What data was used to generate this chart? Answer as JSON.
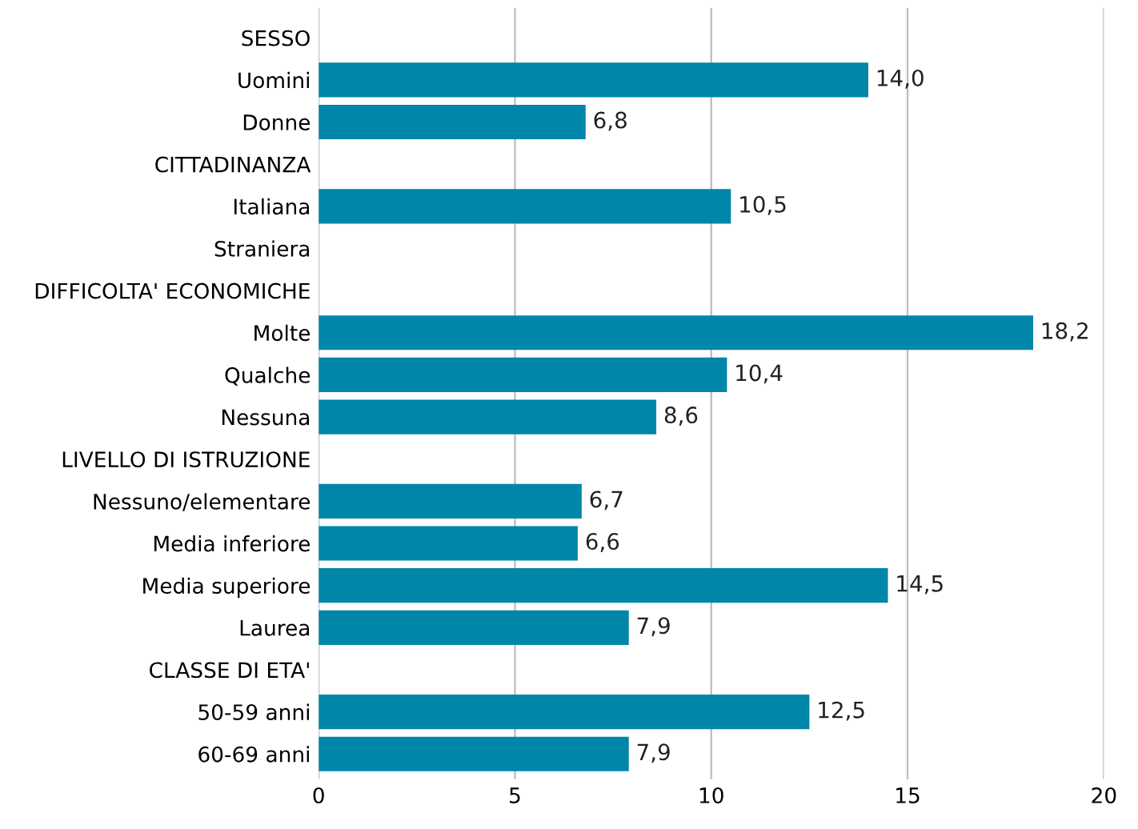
{
  "chart_data": {
    "type": "bar",
    "orientation": "horizontal",
    "categories": [
      "SESSO",
      "Uomini",
      "Donne",
      "CITTADINANZA",
      "Italiana",
      "Straniera",
      "DIFFICOLTA' ECONOMICHE",
      "Molte",
      "Qualche",
      "Nessuna",
      "LIVELLO DI ISTRUZIONE",
      "Nessuno/elementare",
      "Media inferiore",
      "Media superiore",
      "Laurea",
      "CLASSE DI ETA'",
      "50-59 anni",
      "60-69 anni"
    ],
    "values": [
      null,
      14.0,
      6.8,
      null,
      10.5,
      null,
      null,
      18.2,
      10.4,
      8.6,
      null,
      6.7,
      6.6,
      14.5,
      7.9,
      null,
      12.5,
      7.9
    ],
    "value_labels": [
      null,
      "14,0",
      "6,8",
      null,
      "10,5",
      null,
      null,
      "18,2",
      "10,4",
      "8,6",
      null,
      "6,7",
      "6,6",
      "14,5",
      "7,9",
      null,
      "12,5",
      "7,9"
    ],
    "color": "#0086a8",
    "xlim": [
      0,
      20
    ],
    "xticks": [
      0,
      5,
      10,
      15,
      20
    ],
    "grid": "x"
  }
}
